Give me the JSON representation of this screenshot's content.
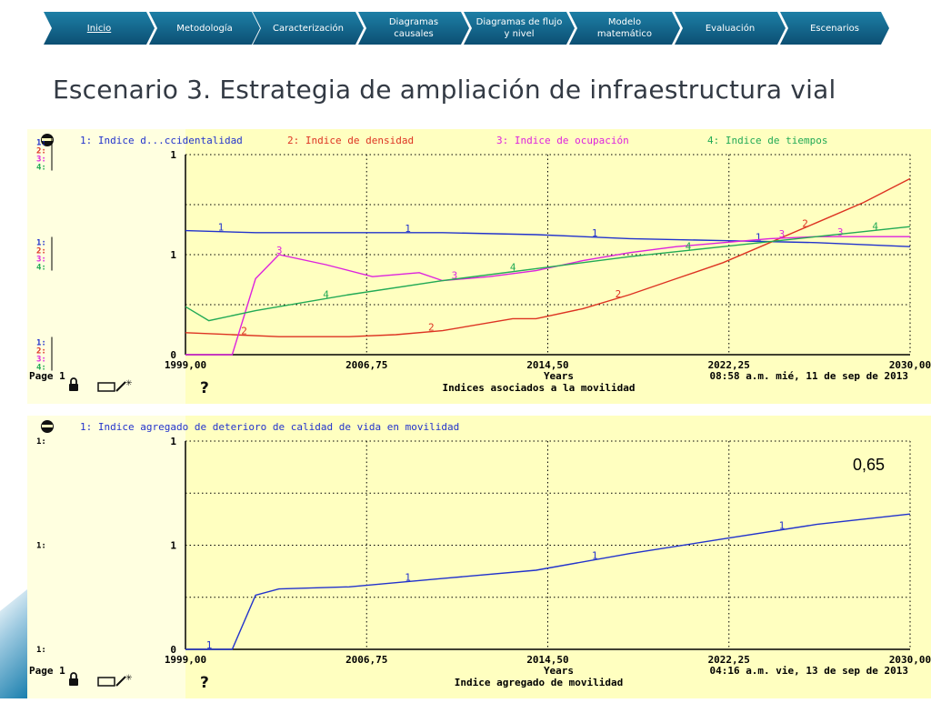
{
  "nav": {
    "items": [
      {
        "label": "Inicio",
        "active": true
      },
      {
        "label": "Metodología"
      },
      {
        "label": "Caracterización"
      },
      {
        "label": "Diagramas causales"
      },
      {
        "label": "Diagramas de flujo y nivel"
      },
      {
        "label": "Modelo matemático"
      },
      {
        "label": "Evaluación"
      },
      {
        "label": "Escenarios"
      }
    ]
  },
  "slide": {
    "title": "Escenario 3. Estrategia de ampliación de infraestructura vial",
    "value_annotation": "0,65"
  },
  "colors": {
    "nav_background": "#0c4f73",
    "panel_background": "#ffffc0",
    "series_1": "#2233cc",
    "series_2": "#dd3322",
    "series_3": "#dd22dd",
    "series_4": "#22aa55"
  },
  "chart_data": [
    {
      "type": "line",
      "title": "Indices asociados a la movilidad",
      "page_label": "Page 1",
      "xlabel": "Years",
      "x_ticks": [
        "1999,00",
        "2006,75",
        "2014,50",
        "2022,25",
        "2030,00"
      ],
      "xlim": [
        1999,
        2030
      ],
      "y_tick_labels": [
        "1",
        "1",
        "0"
      ],
      "y_axis_series_labels": [
        "1:",
        "2:",
        "3:",
        "4:"
      ],
      "timestamp": "08:58 a.m.   mié, 11 de sep de 2013",
      "grid": true,
      "legend_position": "top",
      "series": [
        {
          "name": "1: Indice d...ccidentalidad",
          "color": "#2233cc",
          "marker": "1",
          "x": [
            1999,
            2002,
            2006,
            2010,
            2014,
            2018,
            2022,
            2026,
            2030
          ],
          "y": [
            0.62,
            0.61,
            0.61,
            0.61,
            0.6,
            0.58,
            0.57,
            0.56,
            0.54
          ]
        },
        {
          "name": "2: Indice de densidad",
          "color": "#dd3322",
          "marker": "2",
          "x": [
            1999,
            2001,
            2003,
            2006,
            2008,
            2010,
            2013,
            2014,
            2016,
            2018,
            2020,
            2022,
            2024,
            2026,
            2028,
            2030
          ],
          "y": [
            0.11,
            0.1,
            0.09,
            0.09,
            0.1,
            0.12,
            0.18,
            0.18,
            0.23,
            0.3,
            0.38,
            0.46,
            0.56,
            0.66,
            0.76,
            0.88
          ]
        },
        {
          "name": "3: Indice de ocupación",
          "color": "#dd22dd",
          "marker": "3",
          "x": [
            1999,
            2001,
            2002,
            2003,
            2005,
            2007,
            2009,
            2010,
            2012,
            2014,
            2016,
            2018,
            2020,
            2022,
            2024,
            2026,
            2028,
            2030
          ],
          "y": [
            0.0,
            0.0,
            0.38,
            0.5,
            0.45,
            0.39,
            0.41,
            0.37,
            0.39,
            0.42,
            0.47,
            0.51,
            0.54,
            0.56,
            0.58,
            0.59,
            0.59,
            0.59
          ]
        },
        {
          "name": "4: Indice de tiempos",
          "color": "#22aa55",
          "marker": "4",
          "x": [
            1999,
            2000,
            2002,
            2006,
            2010,
            2014,
            2018,
            2022,
            2026,
            2030
          ],
          "y": [
            0.24,
            0.17,
            0.22,
            0.3,
            0.37,
            0.43,
            0.49,
            0.54,
            0.59,
            0.64
          ]
        }
      ]
    },
    {
      "type": "line",
      "title": "Indice agregado de movilidad",
      "page_label": "Page 1",
      "xlabel": "Years",
      "x_ticks": [
        "1999,00",
        "2006,75",
        "2014,50",
        "2022,25",
        "2030,00"
      ],
      "xlim": [
        1999,
        2030
      ],
      "y_tick_labels": [
        "1",
        "1",
        "0"
      ],
      "y_axis_series_labels": [
        "1:"
      ],
      "timestamp": "04:16 a.m.   vie, 13 de sep de 2013",
      "grid": true,
      "legend_position": "top",
      "series": [
        {
          "name": "1: Indice agregado de  deterioro de  calidad de vida  en movilidad",
          "color": "#2233cc",
          "marker": "1",
          "x": [
            1999,
            2000,
            2001,
            2002,
            2003,
            2006,
            2010,
            2014,
            2018,
            2022,
            2026,
            2030
          ],
          "y": [
            0.0,
            0.0,
            0.0,
            0.26,
            0.29,
            0.3,
            0.34,
            0.38,
            0.46,
            0.53,
            0.6,
            0.65
          ]
        }
      ]
    }
  ]
}
